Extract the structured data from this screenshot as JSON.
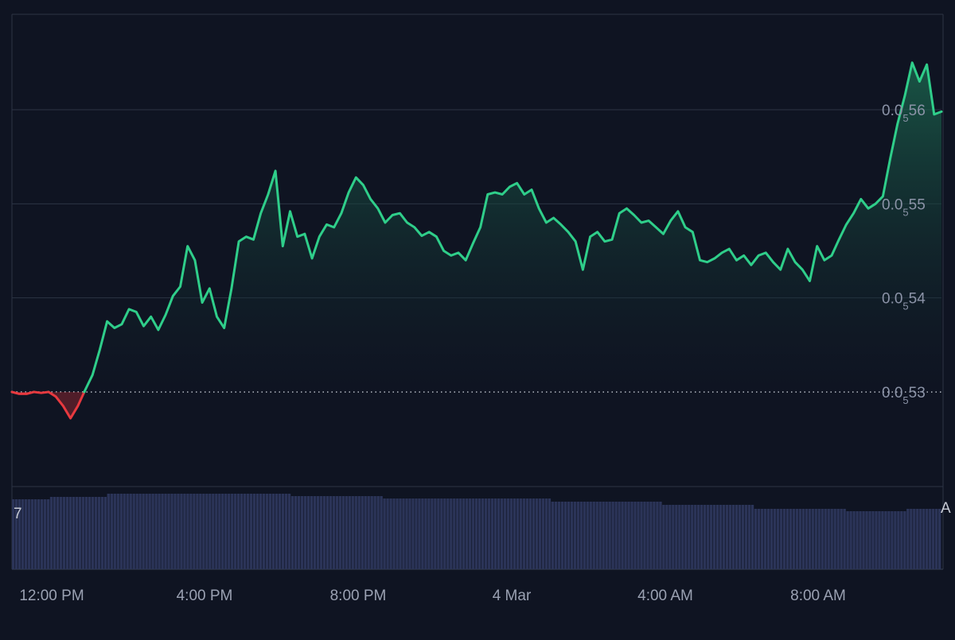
{
  "chart_data": {
    "type": "area",
    "x_ticks": [
      "12:00 PM",
      "4:00 PM",
      "8:00 PM",
      "4 Mar",
      "4:00 AM",
      "8:00 AM"
    ],
    "y_ticks": [
      {
        "value": 5.6e-06,
        "prefix": "0.0",
        "sub": "5",
        "suffix": "56"
      },
      {
        "value": 5.5e-06,
        "prefix": "0.0",
        "sub": "5",
        "suffix": "55"
      },
      {
        "value": 5.4e-06,
        "prefix": "0.0",
        "sub": "5",
        "suffix": "54"
      },
      {
        "value": 5.3e-06,
        "prefix": "0.0",
        "sub": "5",
        "suffix": "53"
      }
    ],
    "baseline": 5.3e-06,
    "colors": {
      "up": "#2fce8a",
      "down": "#e8393f",
      "volume": "#2b3458",
      "grid": "#2c3444",
      "background": "#0f1422"
    },
    "price_series": [
      5.3e-06,
      5.298e-06,
      5.298e-06,
      5.3e-06,
      5.299e-06,
      5.3e-06,
      5.295e-06,
      5.285e-06,
      5.272e-06,
      5.285e-06,
      5.302e-06,
      5.318e-06,
      5.345e-06,
      5.375e-06,
      5.368e-06,
      5.372e-06,
      5.388e-06,
      5.385e-06,
      5.37e-06,
      5.38e-06,
      5.366e-06,
      5.382e-06,
      5.402e-06,
      5.412e-06,
      5.455e-06,
      5.44e-06,
      5.395e-06,
      5.41e-06,
      5.38e-06,
      5.368e-06,
      5.41e-06,
      5.46e-06,
      5.465e-06,
      5.462e-06,
      5.49e-06,
      5.51e-06,
      5.535e-06,
      5.455e-06,
      5.492e-06,
      5.465e-06,
      5.468e-06,
      5.442e-06,
      5.465e-06,
      5.478e-06,
      5.475e-06,
      5.49e-06,
      5.512e-06,
      5.528e-06,
      5.52e-06,
      5.505e-06,
      5.495e-06,
      5.48e-06,
      5.488e-06,
      5.49e-06,
      5.48e-06,
      5.475e-06,
      5.466e-06,
      5.47e-06,
      5.465e-06,
      5.45e-06,
      5.445e-06,
      5.448e-06,
      5.44e-06,
      5.458e-06,
      5.475e-06,
      5.51e-06,
      5.512e-06,
      5.51e-06,
      5.518e-06,
      5.522e-06,
      5.51e-06,
      5.515e-06,
      5.495e-06,
      5.48e-06,
      5.485e-06,
      5.478e-06,
      5.47e-06,
      5.46e-06,
      5.43e-06,
      5.465e-06,
      5.47e-06,
      5.46e-06,
      5.462e-06,
      5.49e-06,
      5.495e-06,
      5.488e-06,
      5.48e-06,
      5.482e-06,
      5.475e-06,
      5.468e-06,
      5.482e-06,
      5.492e-06,
      5.475e-06,
      5.47e-06,
      5.44e-06,
      5.438e-06,
      5.442e-06,
      5.448e-06,
      5.452e-06,
      5.44e-06,
      5.445e-06,
      5.435e-06,
      5.445e-06,
      5.448e-06,
      5.438e-06,
      5.43e-06,
      5.452e-06,
      5.438e-06,
      5.43e-06,
      5.418e-06,
      5.455e-06,
      5.44e-06,
      5.445e-06,
      5.462e-06,
      5.478e-06,
      5.49e-06,
      5.505e-06,
      5.495e-06,
      5.5e-06,
      5.508e-06,
      5.548e-06,
      5.585e-06,
      5.615e-06,
      5.65e-06,
      5.63e-06,
      5.648e-06,
      5.595e-06,
      5.598e-06
    ]
  }
}
